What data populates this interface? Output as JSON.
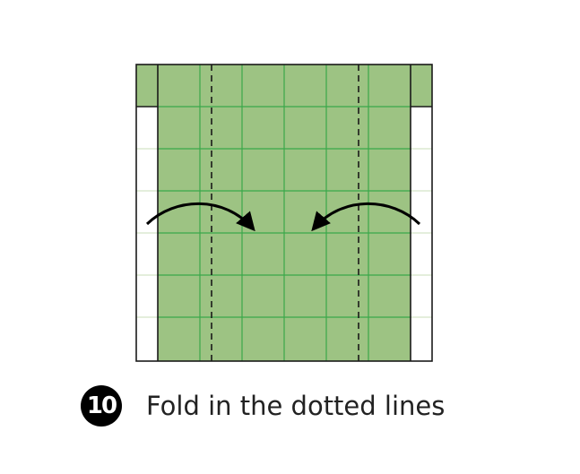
{
  "step": {
    "number": "10",
    "instruction": "Fold in the dotted lines"
  },
  "colors": {
    "paper_green": "#9dc383",
    "grid_line": "#3aa84a",
    "outline": "#1a1a1a",
    "white_back": "#ffffff",
    "arrow": "#000000"
  },
  "icons": {
    "left_arrow": "curved-arrow-right-icon",
    "right_arrow": "curved-arrow-left-icon"
  }
}
